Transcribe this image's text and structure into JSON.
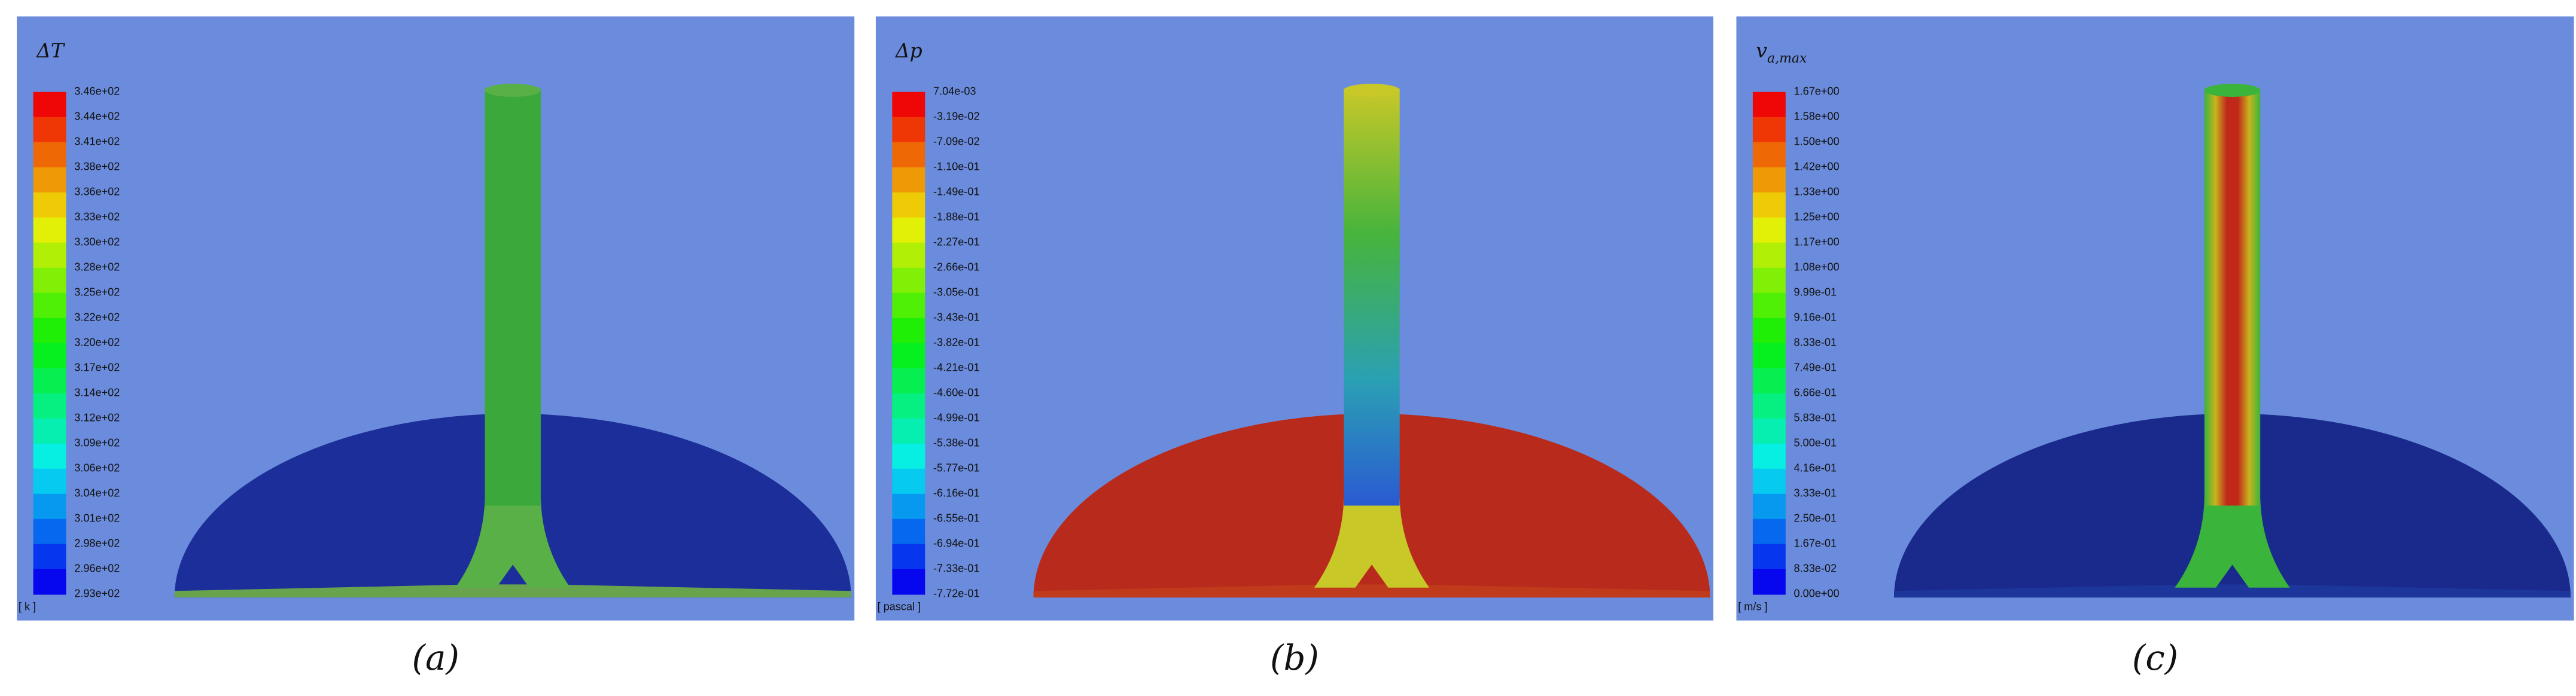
{
  "panels": [
    {
      "title": "ΔT",
      "unit": "[ k ]",
      "caption": "(a)",
      "legend_labels": [
        "3.46e+02",
        "3.44e+02",
        "3.41e+02",
        "3.38e+02",
        "3.36e+02",
        "3.33e+02",
        "3.30e+02",
        "3.28e+02",
        "3.25e+02",
        "3.22e+02",
        "3.20e+02",
        "3.17e+02",
        "3.14e+02",
        "3.12e+02",
        "3.09e+02",
        "3.06e+02",
        "3.04e+02",
        "3.01e+02",
        "2.98e+02",
        "2.96e+02",
        "2.93e+02"
      ]
    },
    {
      "title": "Δp",
      "unit": "[ pascal ]",
      "caption": "(b)",
      "legend_labels": [
        "7.04e-03",
        "-3.19e-02",
        "-7.09e-02",
        "-1.10e-01",
        "-1.49e-01",
        "-1.88e-01",
        "-2.27e-01",
        "-2.66e-01",
        "-3.05e-01",
        "-3.43e-01",
        "-3.82e-01",
        "-4.21e-01",
        "-4.60e-01",
        "-4.99e-01",
        "-5.38e-01",
        "-5.77e-01",
        "-6.16e-01",
        "-6.55e-01",
        "-6.94e-01",
        "-7.33e-01",
        "-7.72e-01"
      ]
    },
    {
      "title": "v",
      "title_subscript": "a,max",
      "unit": "[ m/s ]",
      "caption": "(c)",
      "legend_labels": [
        "1.67e+00",
        "1.58e+00",
        "1.50e+00",
        "1.42e+00",
        "1.33e+00",
        "1.25e+00",
        "1.17e+00",
        "1.08e+00",
        "9.99e-01",
        "9.16e-01",
        "8.33e-01",
        "7.49e-01",
        "6.66e-01",
        "5.83e-01",
        "5.00e-01",
        "4.16e-01",
        "3.33e-01",
        "2.50e-01",
        "1.67e-01",
        "8.33e-02",
        "0.00e+00"
      ]
    }
  ]
}
